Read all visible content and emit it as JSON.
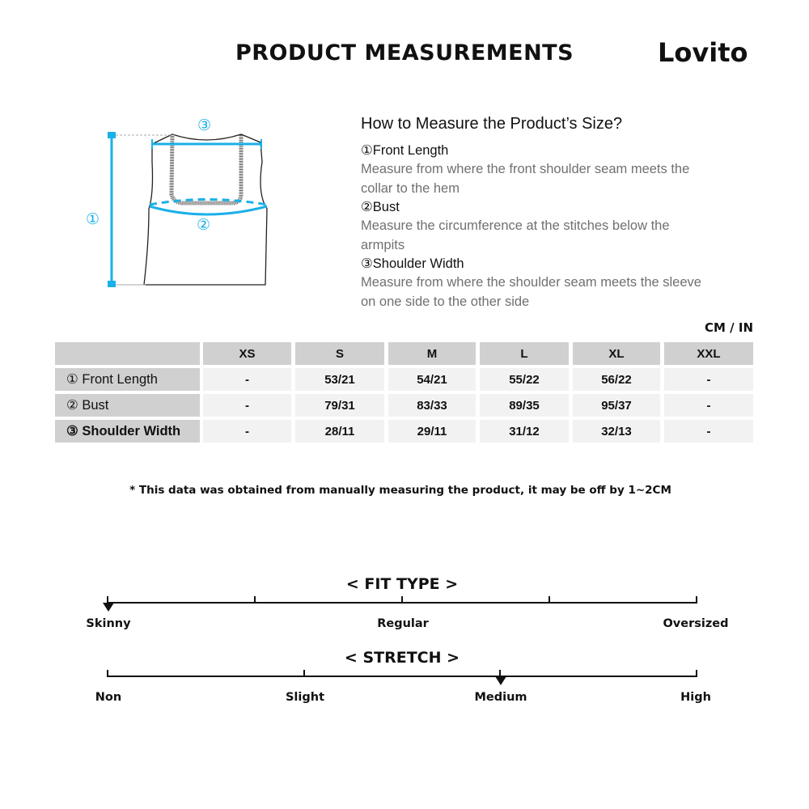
{
  "header": {
    "title": "PRODUCT MEASUREMENTS",
    "brand": "Lovito"
  },
  "diagram": {
    "markers": [
      "①",
      "②",
      "③"
    ],
    "accent_color": "#1ab0e8"
  },
  "guide": {
    "heading": "How to Measure the Product’s Size?",
    "items": [
      {
        "label": "①Front Length",
        "desc_lines": [
          "Measure from where the front shoulder seam meets the",
          "collar to the hem"
        ]
      },
      {
        "label": "②Bust",
        "desc_lines": [
          "Measure the circumference at the stitches below the",
          "armpits"
        ]
      },
      {
        "label": "③Shoulder Width",
        "desc_lines": [
          "Measure from where the shoulder seam meets the sleeve",
          "on one side to the other side"
        ]
      }
    ]
  },
  "table": {
    "unit": "CM / IN",
    "sizes": [
      "XS",
      "S",
      "M",
      "L",
      "XL",
      "XXL"
    ],
    "rows": [
      {
        "label": "① Front Length",
        "values": [
          "-",
          "53/21",
          "54/21",
          "55/22",
          "56/22",
          "-"
        ]
      },
      {
        "label": "② Bust",
        "values": [
          "-",
          "79/31",
          "83/33",
          "89/35",
          "95/37",
          "-"
        ]
      },
      {
        "label": "③ Shoulder Width",
        "values": [
          "-",
          "28/11",
          "29/11",
          "31/12",
          "32/13",
          "-"
        ]
      }
    ]
  },
  "note": "* This data was obtained from manually measuring the product, it may be off by 1~2CM",
  "fit_type": {
    "title": "< FIT TYPE >",
    "labels": [
      "Skinny",
      "Regular",
      "Oversized"
    ],
    "ticks": 5,
    "selected_fraction": 0
  },
  "stretch": {
    "title": "< STRETCH >",
    "labels": [
      "Non",
      "Slight",
      "Medium",
      "High"
    ],
    "ticks": 4,
    "selected": "Medium",
    "selected_fraction": 0.6667
  }
}
